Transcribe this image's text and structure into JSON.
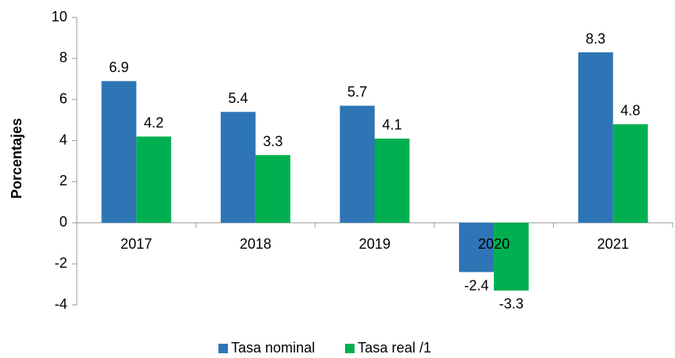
{
  "chart_data": {
    "type": "bar",
    "y_label": "Porcentajes",
    "categories": [
      "2017",
      "2018",
      "2019",
      "2020",
      "2021"
    ],
    "series": [
      {
        "name": "Tasa nominal",
        "color": "#2e75b6",
        "values": [
          6.9,
          5.4,
          5.7,
          -2.4,
          8.3
        ]
      },
      {
        "name": "Tasa real /1",
        "color": "#00b050",
        "values": [
          4.2,
          3.3,
          4.1,
          -3.3,
          4.8
        ]
      }
    ],
    "ylim": [
      -4,
      10
    ],
    "yticks": [
      -4,
      -2,
      0,
      2,
      4,
      6,
      8,
      10
    ],
    "grid": false,
    "legend": "bottom"
  }
}
